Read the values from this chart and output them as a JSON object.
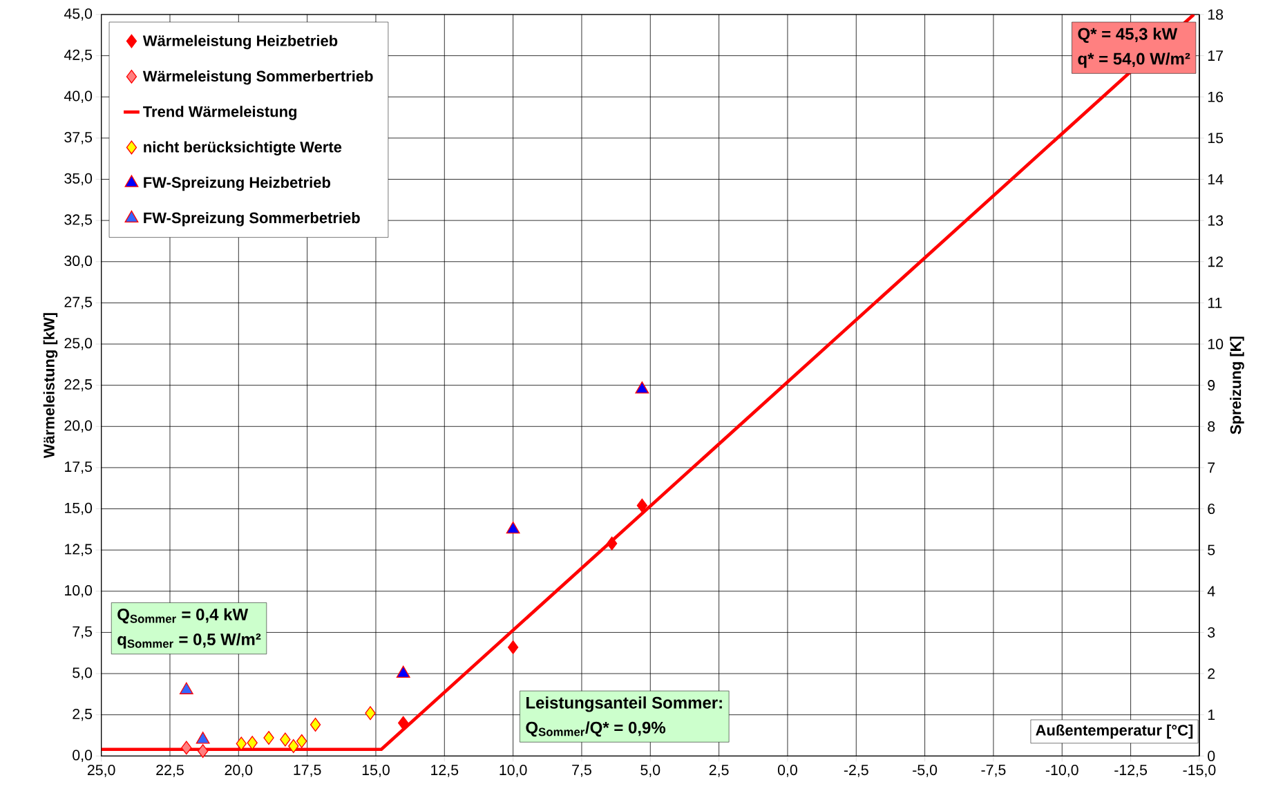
{
  "chart_data": {
    "type": "scatter",
    "xlabel": "Außentemperatur [°C]",
    "ylabel": "Wärmeleistung [kW]",
    "y2label": "Spreizung [K]",
    "xlim": [
      25,
      -15
    ],
    "xticks": [
      {
        "value": 25,
        "label": "25,0"
      },
      {
        "value": 22.5,
        "label": "22,5"
      },
      {
        "value": 20,
        "label": "20,0"
      },
      {
        "value": 17.5,
        "label": "17,5"
      },
      {
        "value": 15,
        "label": "15,0"
      },
      {
        "value": 12.5,
        "label": "12,5"
      },
      {
        "value": 10,
        "label": "10,0"
      },
      {
        "value": 7.5,
        "label": "7,5"
      },
      {
        "value": 5,
        "label": "5,0"
      },
      {
        "value": 2.5,
        "label": "2,5"
      },
      {
        "value": 0,
        "label": "0,0"
      },
      {
        "value": -2.5,
        "label": "-2,5"
      },
      {
        "value": -5,
        "label": "-5,0"
      },
      {
        "value": -7.5,
        "label": "-7,5"
      },
      {
        "value": -10,
        "label": "-10,0"
      },
      {
        "value": -12.5,
        "label": "-12,5"
      },
      {
        "value": -15,
        "label": "-15,0"
      }
    ],
    "ylim": [
      0,
      45
    ],
    "yticks": [
      {
        "value": 0,
        "label": "0,0"
      },
      {
        "value": 2.5,
        "label": "2,5"
      },
      {
        "value": 5,
        "label": "5,0"
      },
      {
        "value": 7.5,
        "label": "7,5"
      },
      {
        "value": 10,
        "label": "10,0"
      },
      {
        "value": 12.5,
        "label": "12,5"
      },
      {
        "value": 15,
        "label": "15,0"
      },
      {
        "value": 17.5,
        "label": "17,5"
      },
      {
        "value": 20,
        "label": "20,0"
      },
      {
        "value": 22.5,
        "label": "22,5"
      },
      {
        "value": 25,
        "label": "25,0"
      },
      {
        "value": 27.5,
        "label": "27,5"
      },
      {
        "value": 30,
        "label": "30,0"
      },
      {
        "value": 32.5,
        "label": "32,5"
      },
      {
        "value": 35,
        "label": "35,0"
      },
      {
        "value": 37.5,
        "label": "37,5"
      },
      {
        "value": 40,
        "label": "40,0"
      },
      {
        "value": 42.5,
        "label": "42,5"
      },
      {
        "value": 45,
        "label": "45,0"
      }
    ],
    "y2lim": [
      0,
      18
    ],
    "y2ticks": [
      0,
      1,
      2,
      3,
      4,
      5,
      6,
      7,
      8,
      9,
      10,
      11,
      12,
      13,
      14,
      15,
      16,
      17,
      18
    ],
    "grid": true,
    "legend": "top left",
    "series": [
      {
        "name": "Wärmeleistung Heizbetrieb",
        "color": "#ff0000",
        "marker": "diamond",
        "x": [
          14.0,
          10.0,
          6.4,
          5.3
        ],
        "values": [
          2.0,
          6.6,
          12.9,
          15.2
        ]
      },
      {
        "name": "Wärmeleistung Sommerbertrieb",
        "color": "#ff8080",
        "marker": "diamond",
        "x": [
          21.9,
          21.3
        ],
        "values": [
          0.5,
          0.3
        ]
      },
      {
        "name": "Trend Wärmeleistung",
        "type": "line",
        "color": "#ff0000",
        "marker": "none",
        "x": [
          25,
          14.8,
          -14.8
        ],
        "values": [
          0.4,
          0.4,
          45.0
        ]
      },
      {
        "name": "nicht berücksichtigte Werte",
        "color": "#ffff00",
        "marker": "diamond",
        "x": [
          19.9,
          19.5,
          18.9,
          18.3,
          18.0,
          17.7,
          17.2,
          15.2
        ],
        "values": [
          0.75,
          0.8,
          1.1,
          1.0,
          0.6,
          0.9,
          1.9,
          2.6
        ]
      },
      {
        "name": "FW-Spreizung Heizbetrieb",
        "color": "#0000ff",
        "marker": "triangle",
        "axis": "y2",
        "x": [
          14.0,
          10.0,
          5.3
        ],
        "values": [
          2.0,
          5.5,
          8.9
        ]
      },
      {
        "name": "FW-Spreizung Sommerbetrieb",
        "color": "#3366ff",
        "marker": "triangle",
        "axis": "y2",
        "x": [
          21.9,
          21.3
        ],
        "values": [
          1.6,
          0.4
        ]
      }
    ],
    "annotations": [
      "Q* = 45,3 kW",
      "q* = 54,0 W/m²",
      "Q$_{Sommer}$ = 0,4 kW",
      "q$_{Sommer}$ = 0,5 W/m²",
      "Leistungsanteil Sommer:",
      "Q$_{Sommer}$/Q* = 0,9%"
    ]
  }
}
